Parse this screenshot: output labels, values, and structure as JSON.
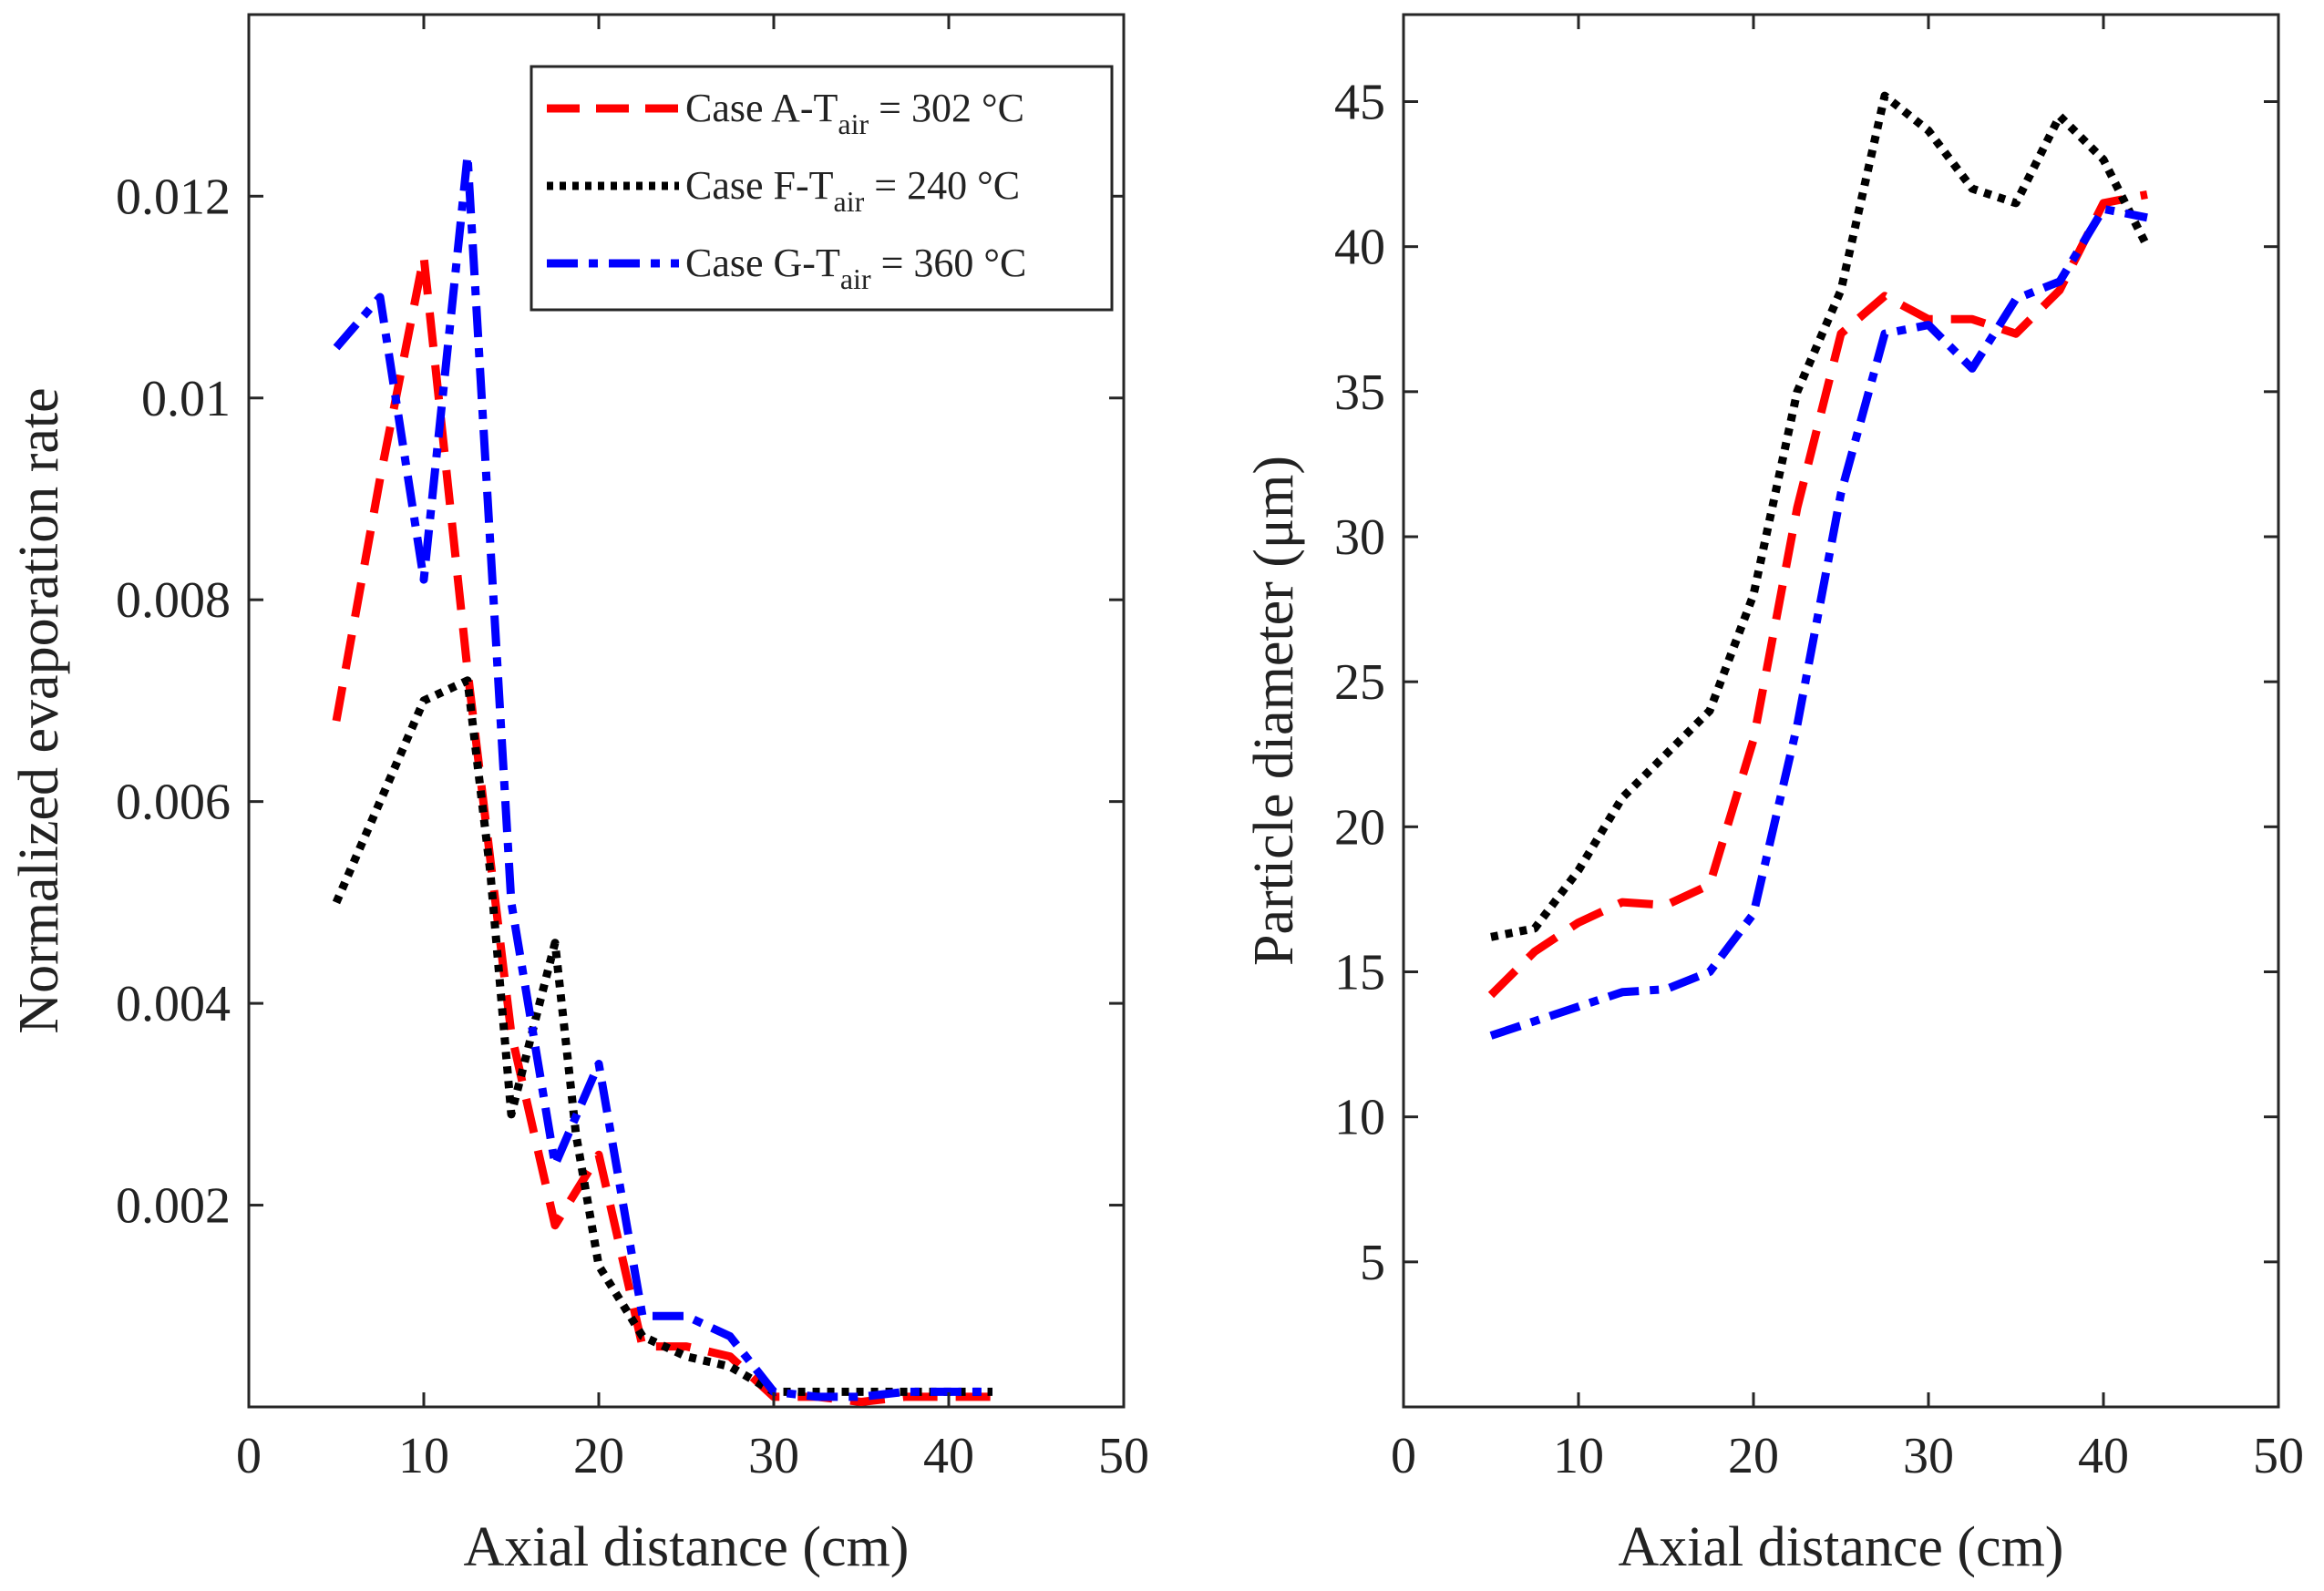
{
  "chart_data": [
    {
      "type": "line",
      "xlabel": "Axial distance (cm)",
      "ylabel": "Normalized evaporation rate",
      "xlim": [
        0,
        50
      ],
      "ylim": [
        0,
        0.0138
      ],
      "xticks": [
        "0",
        "10",
        "20",
        "30",
        "40",
        "50"
      ],
      "xtick_values": [
        0,
        10,
        20,
        30,
        40,
        50
      ],
      "yticks": [
        "0.002",
        "0.004",
        "0.006",
        "0.008",
        "0.01",
        "0.012"
      ],
      "ytick_values": [
        0.002,
        0.004,
        0.006,
        0.008,
        0.01,
        0.012
      ],
      "legend_position": "top-right",
      "series": [
        {
          "name": "Case A-T",
          "sub": "air",
          "suffix": " = 302 °C",
          "color": "#ff0000",
          "style": "dashed",
          "x": [
            5,
            7.5,
            10,
            12.5,
            15,
            17.5,
            20,
            22.5,
            25,
            27.5,
            30,
            32.5,
            35,
            37.5,
            40,
            42.5
          ],
          "y": [
            0.0068,
            0.0092,
            0.0114,
            0.0073,
            0.0037,
            0.0018,
            0.0025,
            0.0006,
            0.0006,
            0.0005,
            0.0001,
            0.0001,
            5e-05,
            0.0001,
            0.0001,
            0.0001
          ]
        },
        {
          "name": "Case F-T",
          "sub": "air",
          "suffix": " = 240 °C",
          "color": "#000000",
          "style": "dotted",
          "x": [
            5,
            7.5,
            10,
            12.5,
            13.8,
            15,
            17.5,
            18.7,
            20,
            22.5,
            25,
            27.5,
            30,
            32.5,
            35,
            37.5,
            40,
            42.5
          ],
          "y": [
            0.005,
            0.006,
            0.007,
            0.0072,
            0.0053,
            0.0029,
            0.0046,
            0.0027,
            0.0014,
            0.0007,
            0.0005,
            0.0004,
            0.00015,
            0.00015,
            0.00015,
            0.00015,
            0.00015,
            0.00015
          ]
        },
        {
          "name": "Case G-T",
          "sub": "air",
          "suffix": " = 360 °C",
          "color": "#0000ff",
          "style": "dashdot",
          "x": [
            5,
            7.5,
            10,
            12.5,
            15,
            17.5,
            20,
            22.5,
            25,
            27.5,
            30,
            32.5,
            35,
            37.5,
            40,
            42.5
          ],
          "y": [
            0.0105,
            0.011,
            0.0082,
            0.0124,
            0.005,
            0.0024,
            0.0034,
            0.0009,
            0.0009,
            0.0007,
            0.00015,
            0.0001,
            0.0001,
            0.00015,
            0.00015,
            0.00015
          ]
        }
      ]
    },
    {
      "type": "line",
      "xlabel": "Axial distance (cm)",
      "ylabel": "Particle diameter (μm)",
      "xlim": [
        0,
        50
      ],
      "ylim": [
        0,
        48
      ],
      "xticks": [
        "0",
        "10",
        "20",
        "30",
        "40",
        "50"
      ],
      "xtick_values": [
        0,
        10,
        20,
        30,
        40,
        50
      ],
      "yticks": [
        "5",
        "10",
        "15",
        "20",
        "25",
        "30",
        "35",
        "40",
        "45"
      ],
      "ytick_values": [
        5,
        10,
        15,
        20,
        25,
        30,
        35,
        40,
        45
      ],
      "series": [
        {
          "name": "Case A",
          "color": "#ff0000",
          "style": "dashed",
          "x": [
            5,
            7.5,
            10,
            12.5,
            15,
            17.5,
            20,
            22.5,
            25,
            27.5,
            30,
            32.5,
            35,
            37.5,
            40,
            42.5
          ],
          "y": [
            14.2,
            15.7,
            16.7,
            17.4,
            17.3,
            18.0,
            23.0,
            31.0,
            37.0,
            38.3,
            37.5,
            37.5,
            37.0,
            38.5,
            41.5,
            41.8
          ]
        },
        {
          "name": "Case F",
          "color": "#000000",
          "style": "dotted",
          "x": [
            5,
            7.5,
            10,
            12.5,
            15,
            17.5,
            20,
            22.5,
            25,
            27.5,
            30,
            32.5,
            35,
            37.5,
            40,
            42.5
          ],
          "y": [
            16.2,
            16.5,
            18.5,
            21.0,
            22.5,
            24.0,
            28.0,
            35.0,
            38.5,
            45.2,
            44.0,
            42.0,
            41.5,
            44.5,
            43.0,
            40.0
          ]
        },
        {
          "name": "Case G",
          "color": "#0000ff",
          "style": "dashdot",
          "x": [
            5,
            7.5,
            10,
            12.5,
            15,
            17.5,
            20,
            22.5,
            25,
            27.5,
            30,
            32.5,
            35,
            37.5,
            40,
            42.5
          ],
          "y": [
            12.8,
            13.3,
            13.8,
            14.3,
            14.4,
            15.0,
            17.0,
            23.5,
            31.5,
            37.0,
            37.3,
            35.8,
            38.2,
            38.8,
            41.3,
            41.0
          ]
        }
      ]
    }
  ]
}
